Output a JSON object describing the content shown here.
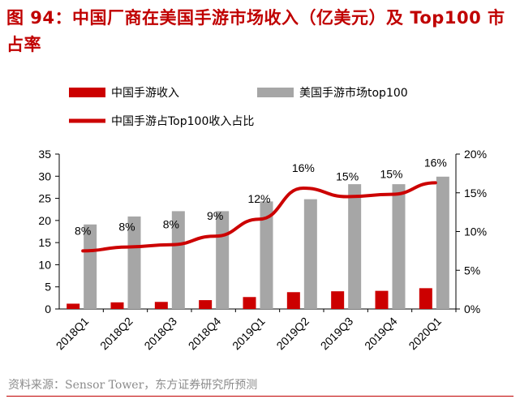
{
  "title": "图 94：中国厂商在美国手游市场收入（亿美元）及 Top100 市占率",
  "source": "资料来源：Sensor Tower，东方证券研究所预测",
  "colors": {
    "red": "#cc0000",
    "gray": "#a6a6a6",
    "title": "#c00000"
  },
  "chart_data": {
    "type": "bar",
    "categories": [
      "2018Q1",
      "2018Q2",
      "2018Q3",
      "2018Q4",
      "2019Q1",
      "2019Q2",
      "2019Q3",
      "2019Q4",
      "2020Q1"
    ],
    "series": [
      {
        "name": "中国手游收入",
        "kind": "bar",
        "axis": "left",
        "color": "#cc0000",
        "values": [
          1.2,
          1.5,
          1.6,
          2.0,
          2.7,
          3.8,
          4.0,
          4.1,
          4.7
        ]
      },
      {
        "name": "美国手游市场top100",
        "kind": "bar",
        "axis": "left",
        "color": "#a6a6a6",
        "values": [
          19.1,
          20.9,
          22.1,
          22.1,
          24.3,
          24.8,
          28.2,
          28.2,
          29.9
        ]
      },
      {
        "name": "中国手游占Top100收入占比",
        "kind": "line",
        "axis": "right",
        "color": "#cc0000",
        "values": [
          7.5,
          8.0,
          8.3,
          9.4,
          11.6,
          15.6,
          14.5,
          14.8,
          16.3
        ],
        "labels": [
          "8%",
          "8%",
          "8%",
          "9%",
          "12%",
          "16%",
          "15%",
          "15%",
          "16%"
        ]
      }
    ],
    "left_axis": {
      "min": 0,
      "max": 35,
      "ticks": [
        0,
        5,
        10,
        15,
        20,
        25,
        30,
        35
      ]
    },
    "right_axis": {
      "min": 0,
      "max": 20,
      "ticks": [
        "0%",
        "5%",
        "10%",
        "15%",
        "20%"
      ]
    },
    "legend_position": "top"
  }
}
